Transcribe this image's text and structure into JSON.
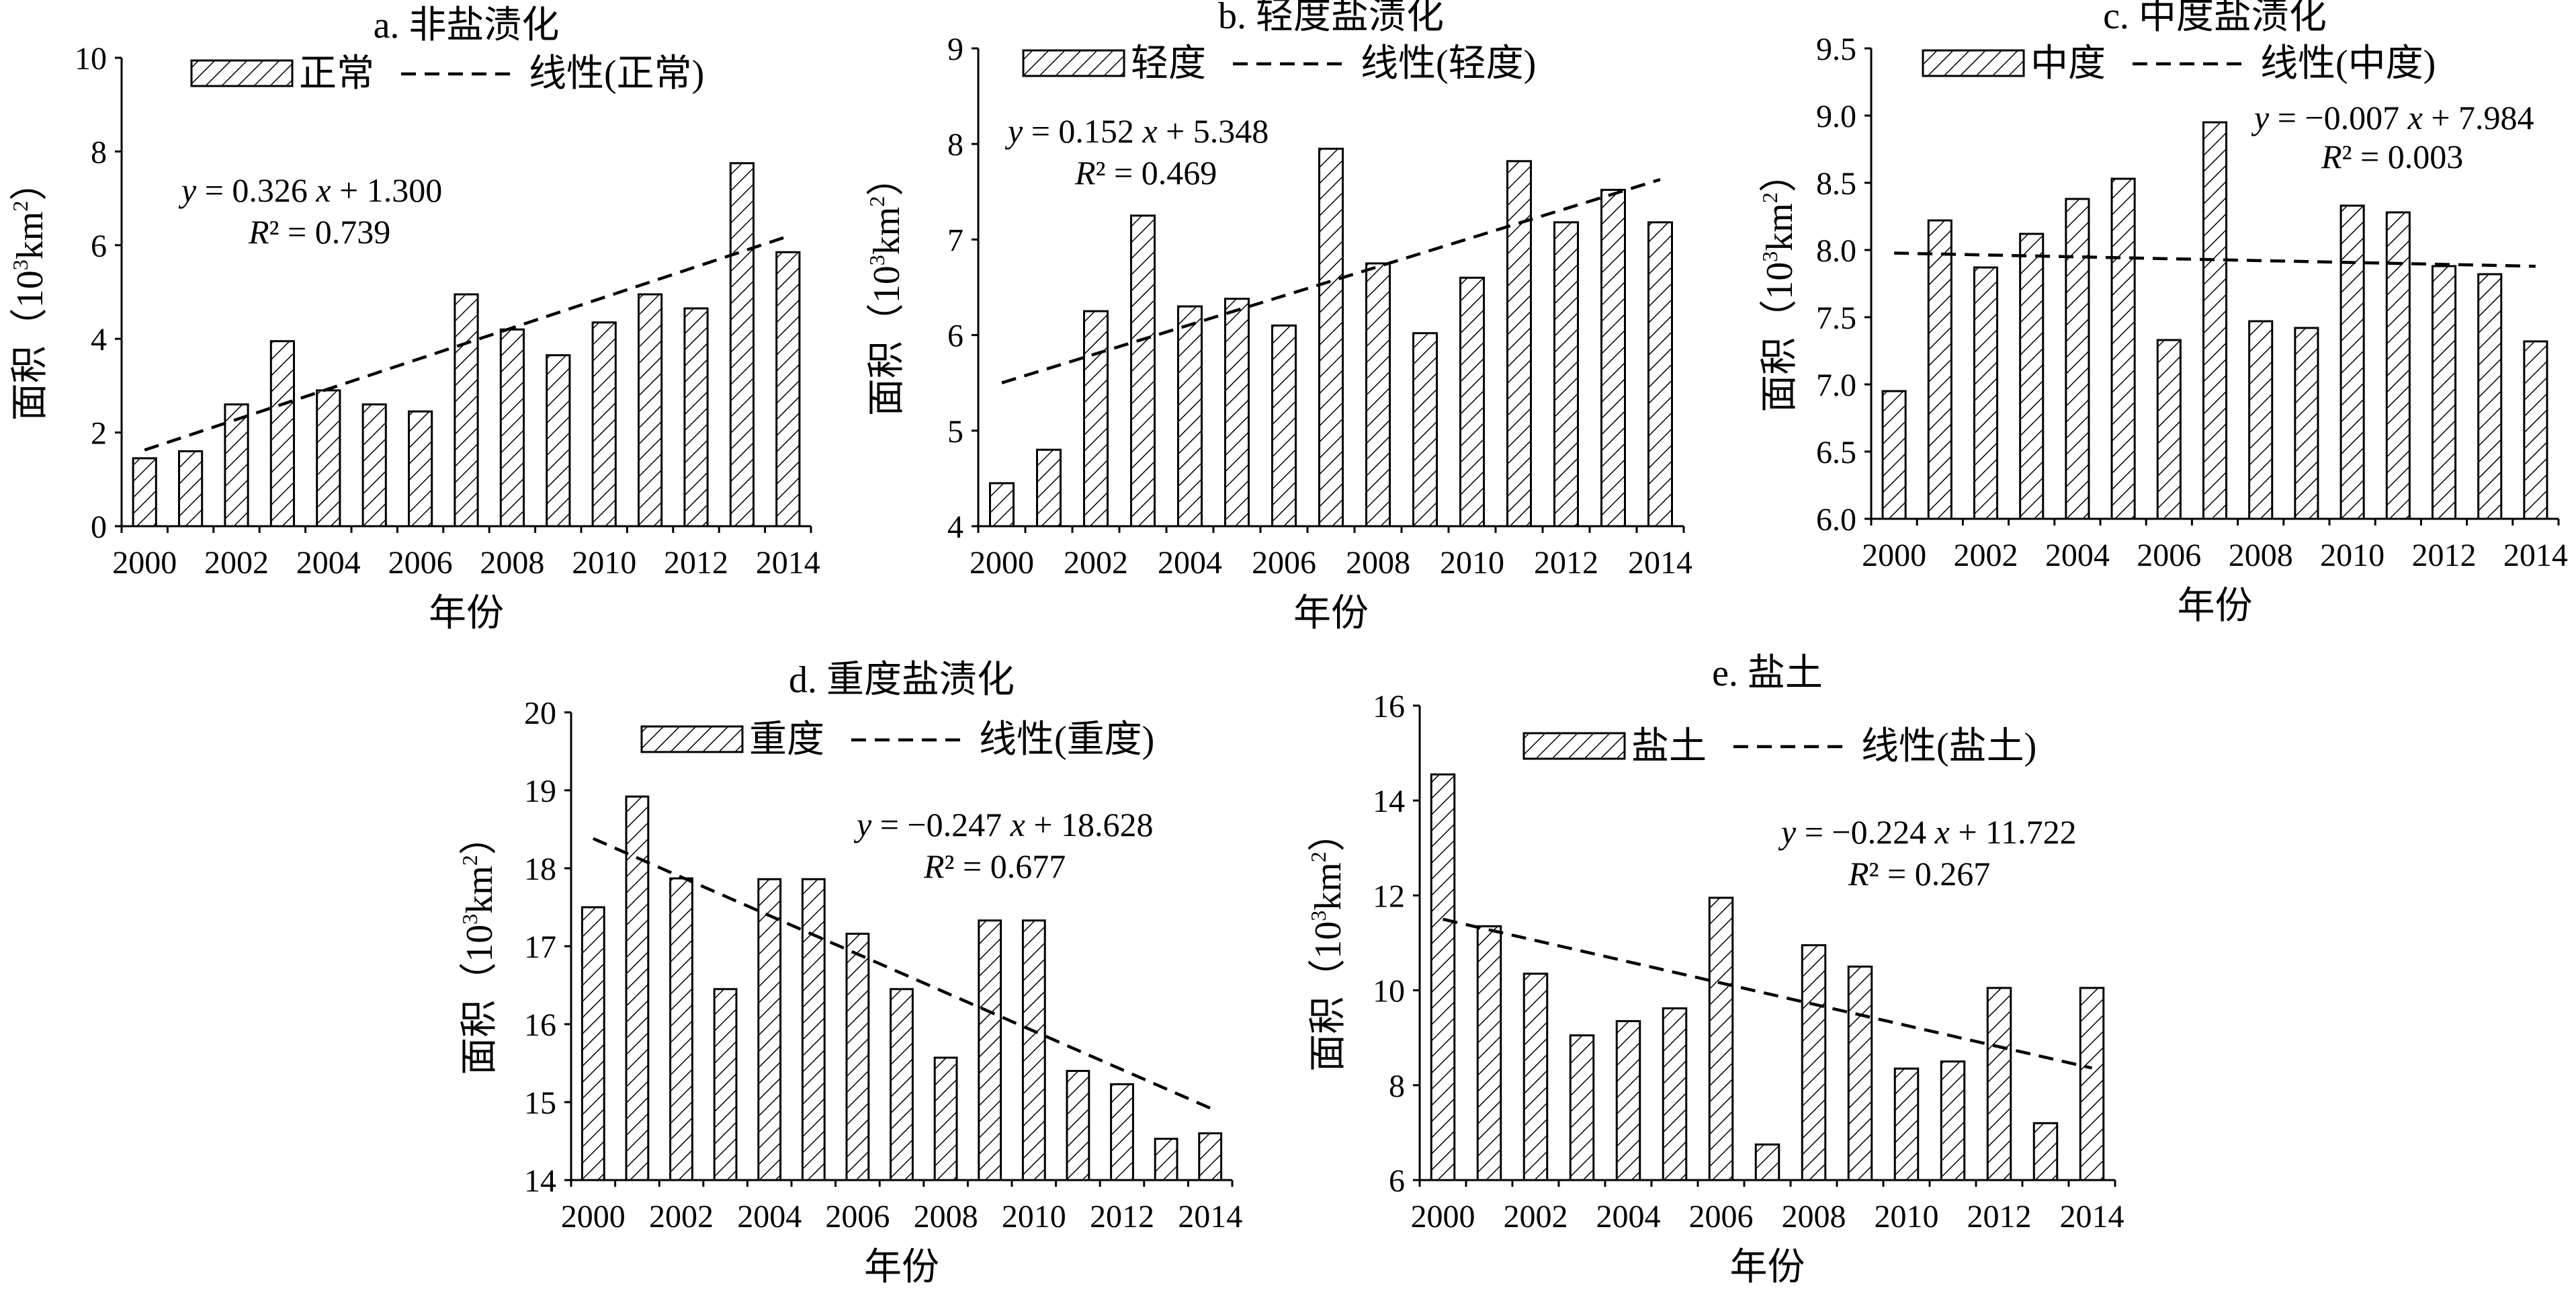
{
  "figure": {
    "xlabel": "年份",
    "ylabel_prefix": "面积（10",
    "ylabel_sup1": "3",
    "ylabel_mid": "km",
    "ylabel_sup2": "2",
    "ylabel_suffix": "）"
  },
  "chart_data": [
    {
      "type": "bar",
      "title": "a. 非盐渍化",
      "legend": {
        "bar_label": "正常",
        "line_label": "线性(正常)",
        "position": "top"
      },
      "xlabel": "年份",
      "ylabel": "面积（10³km²）",
      "x": [
        2000,
        2001,
        2002,
        2003,
        2004,
        2005,
        2006,
        2007,
        2008,
        2009,
        2010,
        2011,
        2012,
        2013,
        2014
      ],
      "x_ticks": [
        "2000",
        "2002",
        "2004",
        "2006",
        "2008",
        "2010",
        "2012",
        "2014"
      ],
      "ylim": [
        0,
        10
      ],
      "y_ticks": [
        "0",
        "2",
        "4",
        "6",
        "8",
        "10"
      ],
      "values": [
        1.45,
        1.6,
        2.6,
        3.95,
        2.9,
        2.6,
        2.45,
        4.95,
        4.2,
        3.65,
        4.35,
        4.95,
        4.65,
        7.75,
        5.85
      ],
      "trend": {
        "slope": 0.326,
        "intercept": 1.3
      },
      "equation": {
        "y": "y",
        "rhs": " = 0.326 ",
        "x": "x",
        "tail": " + 1.300",
        "r": "R",
        "r2": "² = 0.739"
      },
      "grid": false
    },
    {
      "type": "bar",
      "title": "b. 轻度盐渍化",
      "legend": {
        "bar_label": "轻度",
        "line_label": "线性(轻度)",
        "position": "top"
      },
      "xlabel": "年份",
      "ylabel": "面积（10³km²）",
      "x": [
        2000,
        2001,
        2002,
        2003,
        2004,
        2005,
        2006,
        2007,
        2008,
        2009,
        2010,
        2011,
        2012,
        2013,
        2014
      ],
      "x_ticks": [
        "2000",
        "2002",
        "2004",
        "2006",
        "2008",
        "2010",
        "2012",
        "2014"
      ],
      "ylim": [
        4,
        9
      ],
      "y_ticks": [
        "4",
        "5",
        "6",
        "7",
        "8",
        "9"
      ],
      "values": [
        4.45,
        4.8,
        6.25,
        7.25,
        6.3,
        6.38,
        6.1,
        7.95,
        6.75,
        6.02,
        6.6,
        7.82,
        7.18,
        7.52,
        7.18
      ],
      "trend": {
        "slope": 0.152,
        "intercept": 5.348
      },
      "equation": {
        "y": "y",
        "rhs": " = 0.152 ",
        "x": "x",
        "tail": " + 5.348",
        "r": "R",
        "r2": "² = 0.469"
      },
      "grid": false
    },
    {
      "type": "bar",
      "title": "c. 中度盐渍化",
      "legend": {
        "bar_label": "中度",
        "line_label": "线性(中度)",
        "position": "top"
      },
      "xlabel": "年份",
      "ylabel": "面积（10³km²）",
      "x": [
        2000,
        2001,
        2002,
        2003,
        2004,
        2005,
        2006,
        2007,
        2008,
        2009,
        2010,
        2011,
        2012,
        2013,
        2014
      ],
      "x_ticks": [
        "2000",
        "2002",
        "2004",
        "2006",
        "2008",
        "2010",
        "2012",
        "2014"
      ],
      "ylim": [
        6.0,
        9.5
      ],
      "y_ticks": [
        "6.0",
        "6.5",
        "7.0",
        "7.5",
        "8.0",
        "8.5",
        "9.0",
        "9.5"
      ],
      "values": [
        6.95,
        8.22,
        7.87,
        8.12,
        8.38,
        8.53,
        7.33,
        8.95,
        7.47,
        7.42,
        8.33,
        8.28,
        7.88,
        7.82,
        7.32
      ],
      "trend": {
        "slope": -0.007,
        "intercept": 7.984
      },
      "equation": {
        "y": "y",
        "rhs": " = −0.007 ",
        "x": "x",
        "tail": " + 7.984",
        "r": "R",
        "r2": "² = 0.003"
      },
      "grid": false
    },
    {
      "type": "bar",
      "title": "d. 重度盐渍化",
      "legend": {
        "bar_label": "重度",
        "line_label": "线性(重度)",
        "position": "top"
      },
      "xlabel": "年份",
      "ylabel": "面积（10³km²）",
      "x": [
        2000,
        2001,
        2002,
        2003,
        2004,
        2005,
        2006,
        2007,
        2008,
        2009,
        2010,
        2011,
        2012,
        2013,
        2014
      ],
      "x_ticks": [
        "2000",
        "2002",
        "2004",
        "2006",
        "2008",
        "2010",
        "2012",
        "2014"
      ],
      "ylim": [
        14,
        20
      ],
      "y_ticks": [
        "14",
        "15",
        "16",
        "17",
        "18",
        "19",
        "20"
      ],
      "values": [
        17.5,
        18.92,
        17.87,
        16.45,
        17.86,
        17.86,
        17.16,
        16.45,
        15.57,
        17.33,
        17.33,
        15.4,
        15.23,
        14.53,
        14.6
      ],
      "trend": {
        "slope": -0.247,
        "intercept": 18.628
      },
      "equation": {
        "y": "y",
        "rhs": " = −0.247 ",
        "x": "x",
        "tail": " + 18.628",
        "r": "R",
        "r2": "² = 0.677"
      },
      "grid": false
    },
    {
      "type": "bar",
      "title": "e. 盐土",
      "legend": {
        "bar_label": "盐土",
        "line_label": "线性(盐土)",
        "position": "top"
      },
      "xlabel": "年份",
      "ylabel": "面积（10³km²）",
      "x": [
        2000,
        2001,
        2002,
        2003,
        2004,
        2005,
        2006,
        2007,
        2008,
        2009,
        2010,
        2011,
        2012,
        2013,
        2014
      ],
      "x_ticks": [
        "2000",
        "2002",
        "2004",
        "2006",
        "2008",
        "2010",
        "2012",
        "2014"
      ],
      "ylim": [
        6,
        16
      ],
      "y_ticks": [
        "6",
        "8",
        "10",
        "12",
        "14",
        "16"
      ],
      "values": [
        14.55,
        11.35,
        10.35,
        9.05,
        9.35,
        9.62,
        11.95,
        6.75,
        10.95,
        10.5,
        8.35,
        8.5,
        10.05,
        7.2,
        10.05
      ],
      "trend": {
        "slope": -0.224,
        "intercept": 11.722
      },
      "equation": {
        "y": "y",
        "rhs": " = −0.224 ",
        "x": "x",
        "tail": " + 11.722",
        "r": "R",
        "r2": "² = 0.267"
      },
      "grid": false
    }
  ]
}
